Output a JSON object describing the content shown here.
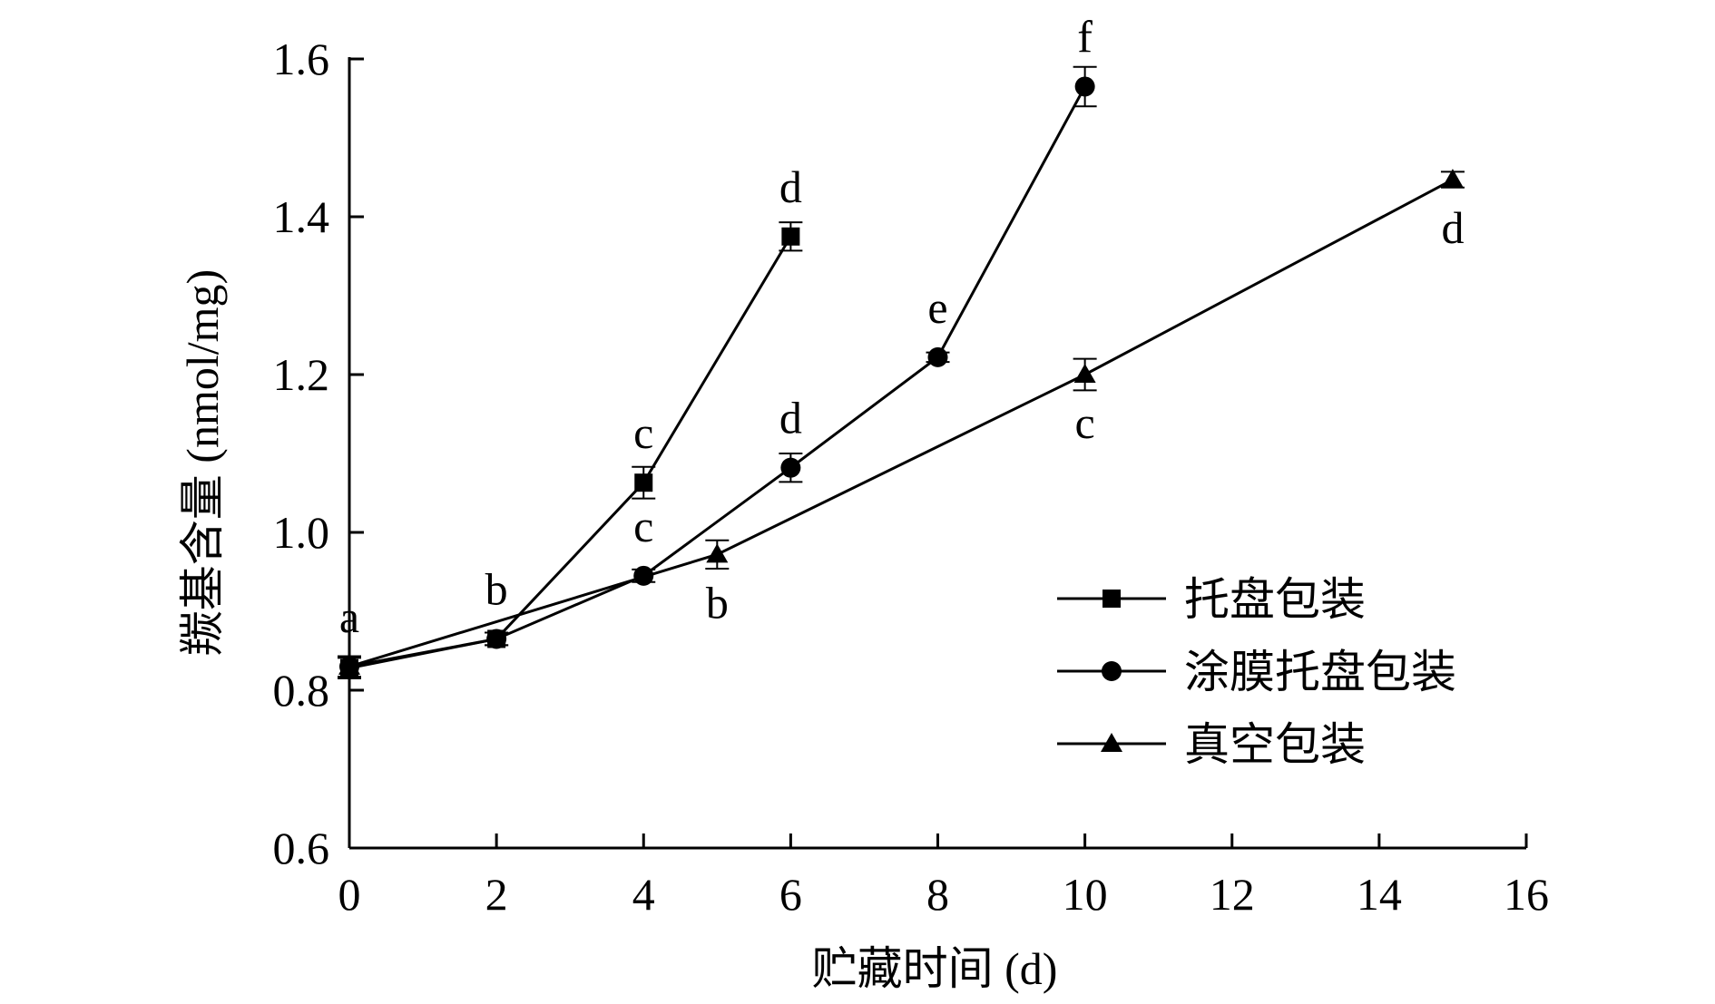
{
  "chart_data": {
    "type": "line",
    "xlabel": "贮藏时间 (d)",
    "ylabel": "羰基含量 (nmol/mg)",
    "xlim": [
      0,
      16
    ],
    "ylim": [
      0.6,
      1.6
    ],
    "xticks": [
      0,
      2,
      4,
      6,
      8,
      10,
      12,
      14,
      16
    ],
    "yticks": [
      0.6,
      0.8,
      1.0,
      1.2,
      1.4,
      1.6
    ],
    "xtick_labels": [
      "0",
      "2",
      "4",
      "6",
      "8",
      "10",
      "12",
      "14",
      "16"
    ],
    "ytick_labels": [
      "0.6",
      "0.8",
      "1.0",
      "1.2",
      "1.4",
      "1.6"
    ],
    "grid": false,
    "legend_position": "bottom-right",
    "series": [
      {
        "name": "托盘包装",
        "marker": "square",
        "x": [
          0,
          2,
          4,
          6
        ],
        "y": [
          0.828,
          0.865,
          1.063,
          1.375
        ],
        "error": [
          0.013,
          0.008,
          0.02,
          0.018
        ]
      },
      {
        "name": "涂膜托盘包装",
        "marker": "circle",
        "x": [
          0,
          2,
          4,
          6,
          8,
          10
        ],
        "y": [
          0.83,
          0.865,
          0.945,
          1.082,
          1.222,
          1.565
        ],
        "error": [
          0.013,
          0.008,
          0.008,
          0.018,
          0.006,
          0.025
        ]
      },
      {
        "name": "真空包装",
        "marker": "triangle",
        "x": [
          0,
          5,
          10,
          15
        ],
        "y": [
          0.83,
          0.972,
          1.2,
          1.447
        ],
        "error": [
          0.013,
          0.018,
          0.02,
          0.01
        ]
      }
    ],
    "annotations": [
      {
        "text": "a",
        "x": 0,
        "y": 0.83,
        "side": "above"
      },
      {
        "text": "b",
        "x": 2,
        "y": 0.865,
        "side": "above"
      },
      {
        "text": "c",
        "x": 4,
        "y": 1.063,
        "side": "above"
      },
      {
        "text": "d",
        "x": 6,
        "y": 1.375,
        "side": "above"
      },
      {
        "text": "c",
        "x": 4,
        "y": 0.945,
        "side": "above"
      },
      {
        "text": "d",
        "x": 6,
        "y": 1.082,
        "side": "above"
      },
      {
        "text": "e",
        "x": 8,
        "y": 1.222,
        "side": "above"
      },
      {
        "text": "f",
        "x": 10,
        "y": 1.565,
        "side": "above"
      },
      {
        "text": "b",
        "x": 5,
        "y": 0.972,
        "side": "below"
      },
      {
        "text": "c",
        "x": 10,
        "y": 1.2,
        "side": "below"
      },
      {
        "text": "d",
        "x": 15,
        "y": 1.447,
        "side": "below"
      }
    ]
  }
}
